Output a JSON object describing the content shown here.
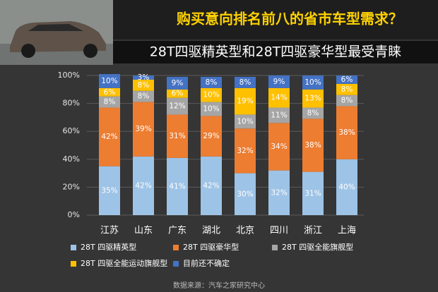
{
  "chart_data": {
    "type": "stacked_bar",
    "title": "购买意向排名前八的省市车型需求？",
    "subtitle": "28T四驱精英型和28T四驱豪华型最受青睐",
    "source": "数据来源：汽车之家研究中心",
    "categories": [
      "江苏",
      "山东",
      "广东",
      "湖北",
      "北京",
      "四川",
      "浙江",
      "上海"
    ],
    "series": [
      {
        "name": "28T 四驱精英型",
        "color": "#9dc3e6",
        "values": [
          35,
          42,
          41,
          42,
          30,
          32,
          31,
          40
        ],
        "value_labels": [
          "35%",
          "42%",
          "41%",
          "42%",
          "30%",
          "32%",
          "31%",
          "40%"
        ]
      },
      {
        "name": "28T 四驱豪华型",
        "color": "#ed7d31",
        "values": [
          42,
          39,
          31,
          29,
          32,
          34,
          38,
          38
        ],
        "value_labels": [
          "42%",
          "39%",
          "31%",
          "29%",
          "32%",
          "34%",
          "38%",
          "38%"
        ]
      },
      {
        "name": "28T 四驱全能旗舰型",
        "color": "#a5a5a5",
        "values": [
          8,
          8,
          12,
          10,
          10,
          11,
          8,
          8
        ],
        "value_labels": [
          "8%",
          "8%",
          "12%",
          "10%",
          "10%",
          "11%",
          "8%",
          "8%"
        ]
      },
      {
        "name": "28T 四驱全能运动旗舰型",
        "color": "#ffc000",
        "values": [
          6,
          8,
          6,
          10,
          19,
          14,
          13,
          8
        ],
        "value_labels": [
          "6%",
          "8%",
          "6%",
          "10%",
          "19%",
          "14%",
          "13%",
          "8%"
        ]
      },
      {
        "name": "目前还不确定",
        "color": "#4472c4",
        "values": [
          10,
          3,
          9,
          8,
          8,
          9,
          10,
          6
        ],
        "value_labels": [
          "10%",
          "3%",
          "9%",
          "8%",
          "8%",
          "9%",
          "10%",
          "6%"
        ]
      }
    ],
    "ylim": [
      0,
      100
    ],
    "yticks": [
      {
        "value": 0,
        "label": "0%"
      },
      {
        "value": 20,
        "label": "20%"
      },
      {
        "value": 40,
        "label": "40%"
      },
      {
        "value": 60,
        "label": "60%"
      },
      {
        "value": 80,
        "label": "80%"
      },
      {
        "value": 100,
        "label": "100%"
      }
    ],
    "grid": true
  }
}
